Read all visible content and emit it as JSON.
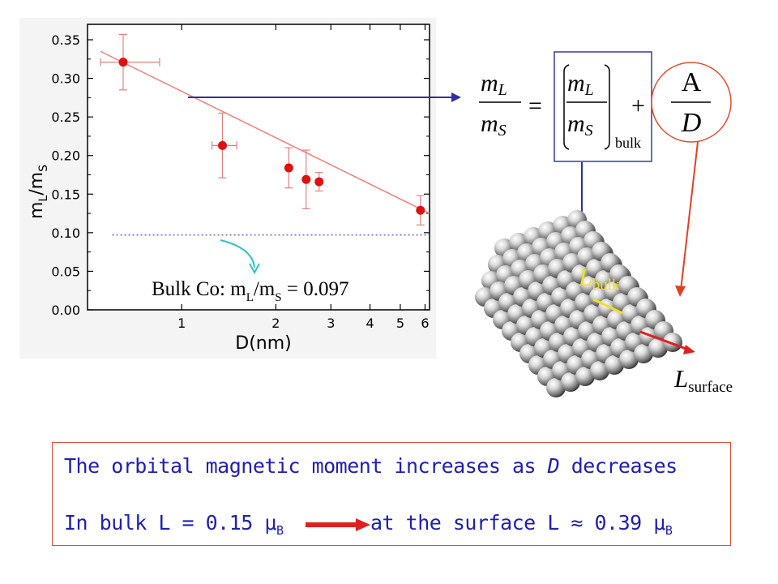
{
  "chart_data": {
    "type": "scatter",
    "xlabel": "D(nm)",
    "ylabel_main": "m",
    "ylabel_sub1": "L",
    "ylabel_mid": "/m",
    "ylabel_sub2": "S",
    "x_scale": "log",
    "xlim": [
      0.5,
      6.2
    ],
    "ylim": [
      0,
      0.37
    ],
    "x_tick_labels": [
      "1",
      "2",
      "3",
      "4",
      "5",
      "6"
    ],
    "x_tick_values": [
      1,
      2,
      3,
      4,
      5,
      6
    ],
    "y_tick_labels": [
      "0.00",
      "0.05",
      "0.10",
      "0.15",
      "0.20",
      "0.25",
      "0.30",
      "0.35"
    ],
    "y_tick_values": [
      0,
      0.05,
      0.1,
      0.15,
      0.2,
      0.25,
      0.3,
      0.35
    ],
    "series": [
      {
        "points": [
          {
            "x": 0.65,
            "y": 0.321,
            "yerr": 0.036,
            "xerr": [
              0.55,
              0.85
            ]
          },
          {
            "x": 1.35,
            "y": 0.213,
            "yerr": 0.042,
            "xerr": [
              1.25,
              1.5
            ]
          },
          {
            "x": 2.2,
            "y": 0.184,
            "yerr": 0.026
          },
          {
            "x": 2.5,
            "y": 0.169,
            "yerr": 0.038
          },
          {
            "x": 2.75,
            "y": 0.166,
            "yerr": 0.012
          },
          {
            "x": 5.8,
            "y": 0.129,
            "yerr": 0.019
          }
        ]
      }
    ],
    "fit_line": {
      "x": [
        0.55,
        6.2
      ],
      "y": [
        0.335,
        0.125
      ]
    },
    "bulk_line": {
      "y": 0.097,
      "x": [
        0.6,
        6.2
      ]
    },
    "annotation": {
      "prefix": "Bulk Co: m",
      "sub1": "L",
      "mid": "/m",
      "sub2": "S",
      "suffix": " = 0.097"
    },
    "colors": {
      "points": "#e01010",
      "fit": "#f08080",
      "errorbars": "#e08080",
      "bulk": "#5050c0",
      "axes": "#000000",
      "frame_bg": "#f2f2f2"
    }
  },
  "formula": {
    "lhs_num": "m",
    "lhs_num_sub": "L",
    "lhs_den": "m",
    "lhs_den_sub": "S",
    "equals": "=",
    "rhs_num": "m",
    "rhs_num_sub": "L",
    "rhs_den": "m",
    "rhs_den_sub": "S",
    "bulk_sub": "bulk",
    "plus": "+",
    "frac_num": "A",
    "frac_den": "D"
  },
  "cluster": {
    "l_bulk_main": "L",
    "l_bulk_sub": "bulk",
    "l_surface_main": "L",
    "l_surface_sub": "surface",
    "colors": {
      "bulk_arrow": "#f0e020",
      "surface_arrow": "#e02020",
      "bulk_label": "#f0e020"
    }
  },
  "conclusion": {
    "line1_pre": "The orbital magnetic moment increases as ",
    "line1_var": "D",
    "line1_post": " decreases",
    "line2_pre": "In bulk L = 0.15 ",
    "mu": "μ",
    "b_sub": "B",
    "line2_post_pre": "at the surface L ",
    "approx": "≈",
    "line2_post_val": " 0.39 ",
    "mu2": "μ",
    "b_sub2": "B",
    "colors": {
      "text": "#2020b0",
      "arrow": "#e02020",
      "border": "#d9533a"
    }
  },
  "connectors": {
    "blue": "#3030a0",
    "red": "#e04020"
  }
}
